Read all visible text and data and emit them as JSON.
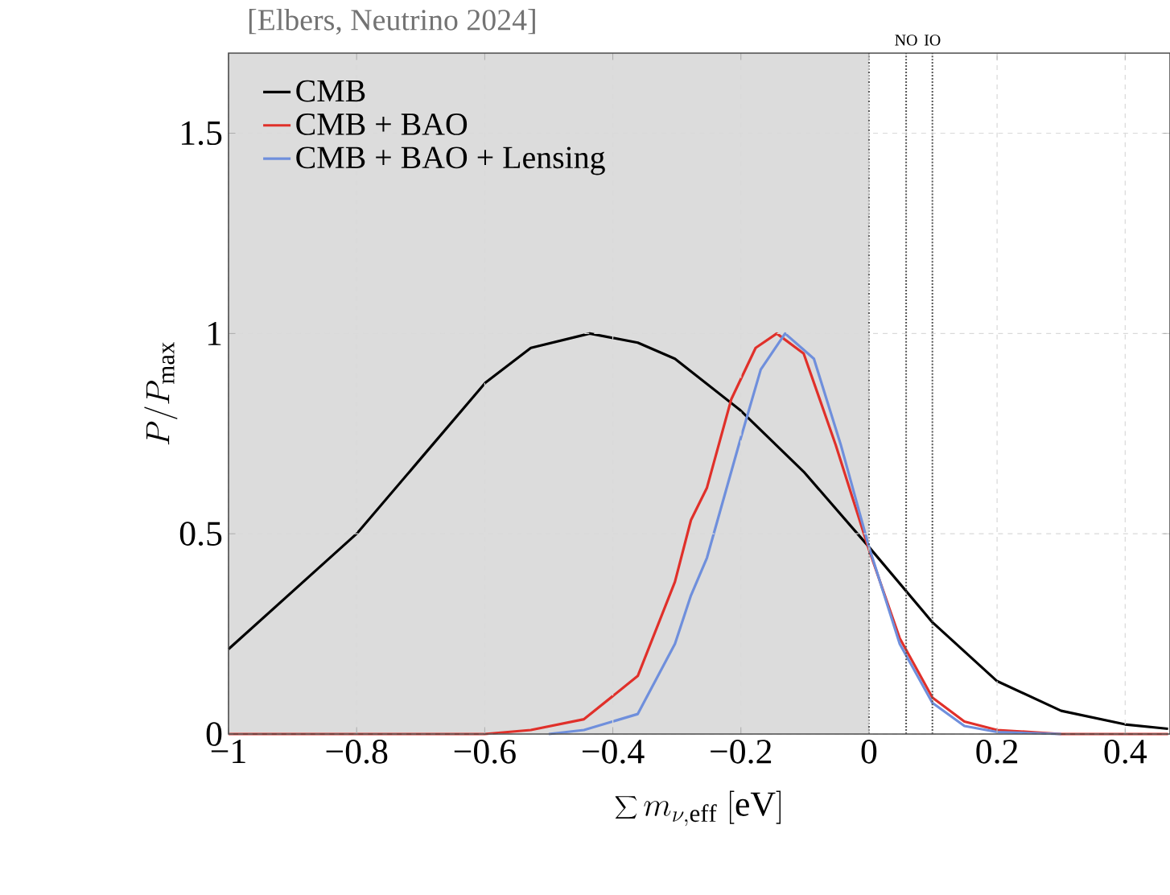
{
  "chart_data": {
    "type": "line",
    "xlabel": "\\sum m_{\\nu,\\mathrm{eff}}\\ [\\mathrm{eV}]",
    "ylabel": "P/P_{\\mathrm{max}}",
    "xlim": [
      -1,
      0.47
    ],
    "ylim": [
      0,
      1.7
    ],
    "xticks": [
      {
        "value": -1,
        "label": "−1"
      },
      {
        "value": -0.8,
        "label": "−0.8"
      },
      {
        "value": -0.6,
        "label": "−0.6"
      },
      {
        "value": -0.4,
        "label": "−0.4"
      },
      {
        "value": -0.2,
        "label": "−0.2"
      },
      0,
      0.2,
      0.4
    ],
    "yticks": [
      0,
      0.5,
      1,
      1.5
    ],
    "grid": true,
    "legend": "top left",
    "marker": "none",
    "line_style": "solid",
    "annotations": [
      "[Elbers, Neutrino 2024]"
    ],
    "bands": [
      {
        "axis": "x",
        "from": -1,
        "to": 0,
        "color": "#dcdcdc"
      }
    ],
    "ref_lines": [
      {
        "axis": "x",
        "value": 0,
        "color": "#555555",
        "line_style": "dotted"
      },
      {
        "axis": "x",
        "value": 0.058,
        "label": "NO",
        "color": "#555555",
        "line_style": "dotted"
      },
      {
        "axis": "x",
        "value": 0.099,
        "label": "IO",
        "color": "#555555",
        "line_style": "dotted"
      }
    ],
    "series": [
      {
        "name": "CMB",
        "color": "#000000",
        "x": [
          -1,
          -0.8,
          -0.696,
          -0.599,
          -0.528,
          -0.436,
          -0.361,
          -0.303,
          -0.202,
          -0.102,
          0,
          0.099,
          0.2,
          0.3,
          0.4,
          0.467
        ],
        "values": [
          0.212,
          0.5,
          0.695,
          0.877,
          0.964,
          1.0,
          0.977,
          0.937,
          0.81,
          0.655,
          0.467,
          0.279,
          0.132,
          0.058,
          0.024,
          0.013
        ]
      },
      {
        "name": "CMB + BAO",
        "color": "#e0302a",
        "x": [
          -1,
          -0.6,
          -0.528,
          -0.445,
          -0.361,
          -0.303,
          -0.278,
          -0.253,
          -0.215,
          -0.177,
          -0.144,
          -0.102,
          -0.052,
          0,
          0.048,
          0.099,
          0.149,
          0.2,
          0.3,
          0.467
        ],
        "values": [
          0,
          0,
          0.01,
          0.037,
          0.145,
          0.38,
          0.534,
          0.615,
          0.836,
          0.964,
          1.0,
          0.95,
          0.722,
          0.46,
          0.239,
          0.091,
          0.031,
          0.01,
          0,
          0
        ]
      },
      {
        "name": "CMB + BAO + Lensing",
        "color": "#6f8fdc",
        "x": [
          -0.5,
          -0.445,
          -0.361,
          -0.303,
          -0.278,
          -0.253,
          -0.202,
          -0.169,
          -0.131,
          -0.086,
          -0.044,
          0,
          0.048,
          0.099,
          0.149,
          0.2,
          0.3
        ],
        "values": [
          0,
          0.01,
          0.05,
          0.225,
          0.346,
          0.44,
          0.729,
          0.91,
          1.0,
          0.937,
          0.722,
          0.467,
          0.225,
          0.078,
          0.02,
          0.005,
          0
        ]
      }
    ]
  }
}
